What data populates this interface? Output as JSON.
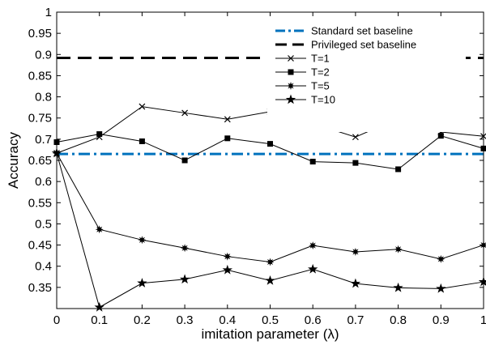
{
  "chart_data": {
    "type": "line",
    "xlabel": "imitation parameter (λ)",
    "ylabel": "Accuracy",
    "xlim": [
      0,
      1
    ],
    "ylim": [
      0.3,
      1.0
    ],
    "x": [
      0,
      0.1,
      0.2,
      0.3,
      0.4,
      0.5,
      0.6,
      0.7,
      0.8,
      0.9,
      1
    ],
    "xticks": [
      "0",
      "0.1",
      "0.2",
      "0.3",
      "0.4",
      "0.5",
      "0.6",
      "0.7",
      "0.8",
      "0.9",
      "1"
    ],
    "yticks": [
      "0.35",
      "0.4",
      "0.45",
      "0.5",
      "0.55",
      "0.6",
      "0.65",
      "0.7",
      "0.75",
      "0.8",
      "0.85",
      "0.9",
      "0.95",
      "1"
    ],
    "grid": false,
    "legend_position": "top-right",
    "baselines": [
      {
        "name": "Standard set baseline",
        "value": 0.665,
        "color": "#0072BD",
        "style": "dash-dot"
      },
      {
        "name": "Privileged set baseline",
        "value": 0.892,
        "color": "#000000",
        "style": "dashed"
      }
    ],
    "series": [
      {
        "name": "T=1",
        "marker": "x",
        "color": "#000000",
        "values": [
          0.667,
          0.705,
          0.777,
          0.762,
          0.747,
          0.765,
          0.737,
          0.705,
          0.749,
          0.717,
          0.707
        ]
      },
      {
        "name": "T=2",
        "marker": "square",
        "color": "#000000",
        "values": [
          0.693,
          0.712,
          0.695,
          0.65,
          0.702,
          0.689,
          0.647,
          0.644,
          0.629,
          0.708,
          0.678
        ]
      },
      {
        "name": "T=5",
        "marker": "asterisk",
        "color": "#000000",
        "values": [
          0.667,
          0.487,
          0.462,
          0.443,
          0.423,
          0.41,
          0.449,
          0.434,
          0.44,
          0.417,
          0.45
        ]
      },
      {
        "name": "T=10",
        "marker": "star",
        "color": "#000000",
        "values": [
          0.667,
          0.303,
          0.36,
          0.369,
          0.391,
          0.366,
          0.393,
          0.359,
          0.349,
          0.347,
          0.363
        ]
      }
    ]
  }
}
